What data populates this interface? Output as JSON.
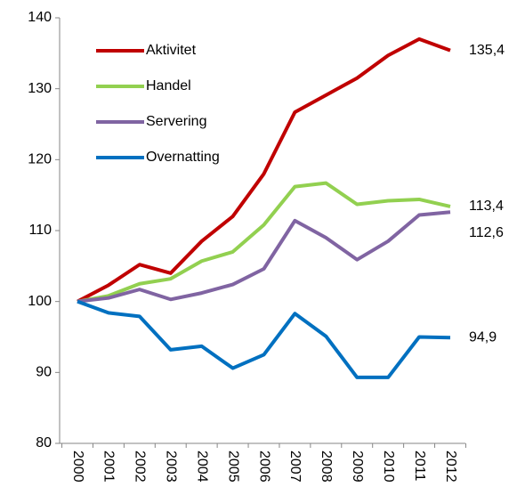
{
  "chart_data": {
    "type": "line",
    "categories": [
      "2000",
      "2001",
      "2002",
      "2003",
      "2004",
      "2005",
      "2006",
      "2007",
      "2008",
      "2009",
      "2010",
      "2011",
      "2012"
    ],
    "series": [
      {
        "name": "Aktivitet",
        "color": "#c00000",
        "values": [
          100,
          102.3,
          105.2,
          104,
          108.5,
          112,
          118,
          126.7,
          129.1,
          131.5,
          134.7,
          137,
          135.4
        ],
        "value_labels": [
          null,
          null,
          null,
          null,
          null,
          null,
          null,
          null,
          null,
          null,
          null,
          null,
          "135,4"
        ]
      },
      {
        "name": "Handel",
        "color": "#92d050",
        "values": [
          100,
          100.8,
          102.5,
          103.2,
          105.7,
          107,
          110.8,
          116.2,
          116.7,
          113.7,
          114.2,
          114.4,
          113.4
        ],
        "value_labels": [
          null,
          null,
          null,
          null,
          null,
          null,
          null,
          null,
          null,
          null,
          null,
          null,
          "113,4"
        ]
      },
      {
        "name": "Servering",
        "color": "#8064a2",
        "values": [
          100,
          100.5,
          101.7,
          100.3,
          101.2,
          102.4,
          104.6,
          111.4,
          109,
          105.9,
          108.5,
          112.2,
          112.6
        ],
        "value_labels": [
          null,
          null,
          null,
          null,
          null,
          null,
          null,
          null,
          null,
          null,
          null,
          null,
          "112,6"
        ]
      },
      {
        "name": "Overnatting",
        "color": "#0070c0",
        "values": [
          100,
          98.4,
          97.9,
          93.2,
          93.7,
          90.6,
          92.5,
          98.3,
          95.1,
          89.3,
          89.3,
          95,
          94.9
        ],
        "value_labels": [
          null,
          null,
          null,
          null,
          null,
          null,
          null,
          null,
          null,
          null,
          null,
          null,
          "94,9"
        ]
      }
    ],
    "ylim": [
      80,
      140
    ],
    "yticks": [
      80,
      90,
      100,
      110,
      120,
      130,
      140
    ],
    "legend": "upper-left",
    "grid": false
  }
}
